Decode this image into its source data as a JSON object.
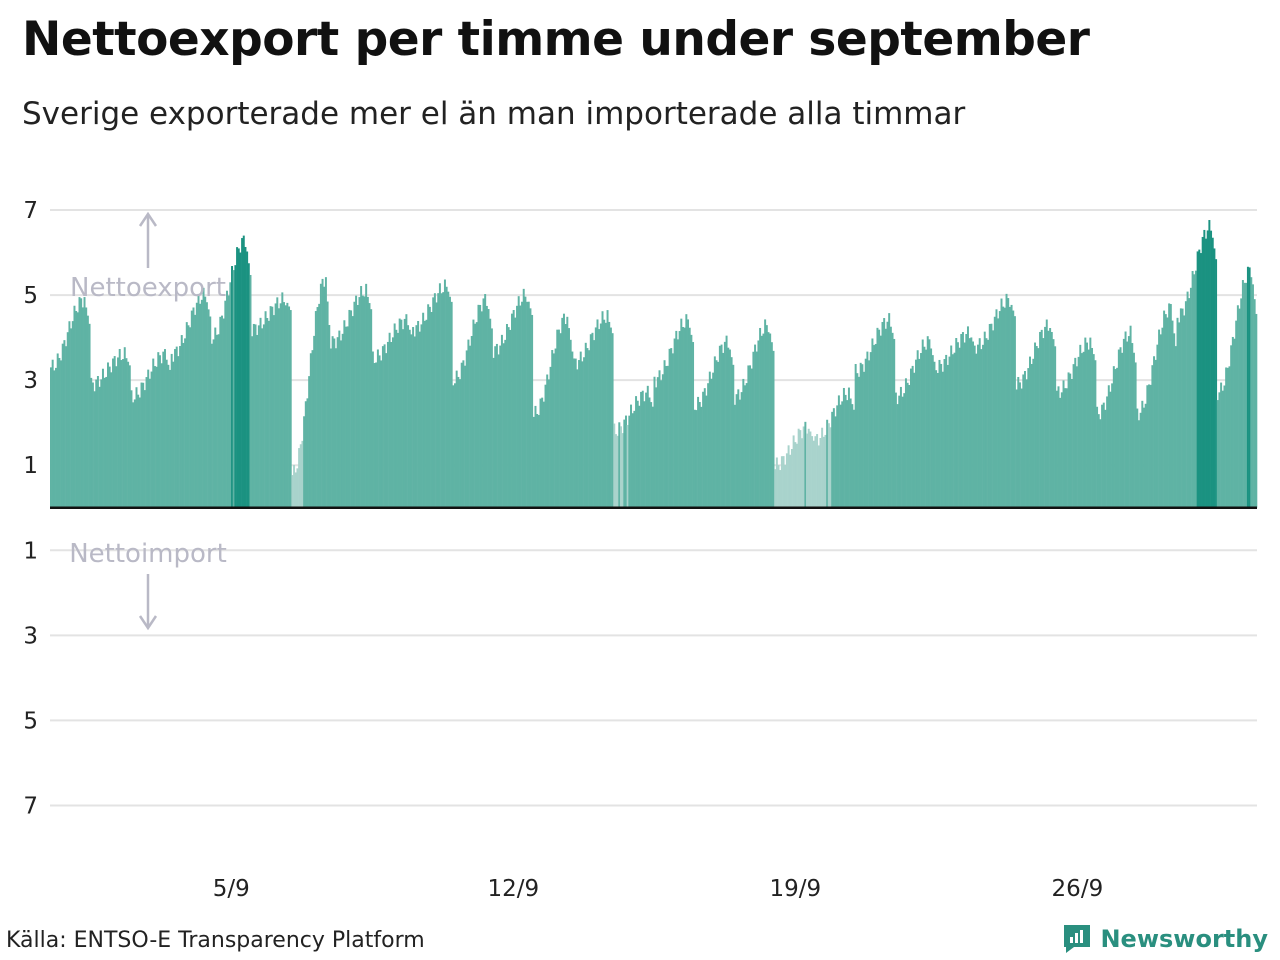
{
  "header": {
    "title": "Nettoexport per timme under september",
    "subtitle": "Sverige exporterade mer el än man importerade alla timmar"
  },
  "footer": {
    "source": "Källa: ENTSO-E Transparency Platform",
    "brand": "Newsworthy"
  },
  "icons": {
    "brand_logo": "newsworthy-logo-icon",
    "arrow_up": "arrow-up-icon",
    "arrow_down": "arrow-down-icon"
  },
  "colors": {
    "bar_normal": "#5fb3a4",
    "bar_high": "#1b9281",
    "bar_low": "#a9d3cc",
    "grid": "#e3e3e3",
    "zero_line": "#111111",
    "annotation": "#b9b9c6",
    "brand": "#2a8f7f"
  },
  "chart_data": {
    "type": "bar",
    "x_axis": {
      "range": [
        "2023-09-01 00:00",
        "2023-09-30 23:00"
      ],
      "tick_labels": [
        {
          "date": "2023-09-05",
          "label": "5/9"
        },
        {
          "date": "2023-09-12",
          "label": "12/9"
        },
        {
          "date": "2023-09-19",
          "label": "19/9"
        },
        {
          "date": "2023-09-26",
          "label": "26/9"
        }
      ]
    },
    "y_axis": {
      "range": [
        -8,
        7
      ],
      "tick_labels": [
        {
          "value": 7,
          "label": "7"
        },
        {
          "value": 5,
          "label": "5"
        },
        {
          "value": 3,
          "label": "3"
        },
        {
          "value": 1,
          "label": "1"
        },
        {
          "value": -1,
          "label": "1"
        },
        {
          "value": -3,
          "label": "3"
        },
        {
          "value": -5,
          "label": "5"
        },
        {
          "value": -7,
          "label": "7"
        }
      ]
    },
    "grid": true,
    "annotations": {
      "export": "Nettoexport",
      "import": "Nettoimport"
    },
    "daily_profile": [
      {
        "date": "2023-09-01",
        "low": 3.3,
        "high": 4.9
      },
      {
        "date": "2023-09-02",
        "low": 2.9,
        "high": 3.6
      },
      {
        "date": "2023-09-03",
        "low": 2.6,
        "high": 3.6
      },
      {
        "date": "2023-09-04",
        "low": 3.6,
        "high": 5.0
      },
      {
        "date": "2023-09-05",
        "low": 4.0,
        "high": 6.3
      },
      {
        "date": "2023-09-06",
        "low": 4.2,
        "high": 4.9
      },
      {
        "date": "2023-09-07",
        "low": 0.8,
        "high": 5.4
      },
      {
        "date": "2023-09-08",
        "low": 3.9,
        "high": 5.1
      },
      {
        "date": "2023-09-09",
        "low": 3.5,
        "high": 4.4
      },
      {
        "date": "2023-09-10",
        "low": 4.2,
        "high": 5.2
      },
      {
        "date": "2023-09-11",
        "low": 3.0,
        "high": 4.9
      },
      {
        "date": "2023-09-12",
        "low": 3.7,
        "high": 5.0
      },
      {
        "date": "2023-09-13",
        "low": 2.2,
        "high": 4.5
      },
      {
        "date": "2023-09-14",
        "low": 3.4,
        "high": 4.5
      },
      {
        "date": "2023-09-15",
        "low": 1.8,
        "high": 2.7
      },
      {
        "date": "2023-09-16",
        "low": 3.0,
        "high": 4.4
      },
      {
        "date": "2023-09-17",
        "low": 2.4,
        "high": 3.9
      },
      {
        "date": "2023-09-18",
        "low": 2.6,
        "high": 4.3
      },
      {
        "date": "2023-09-19",
        "low": 1.0,
        "high": 1.9
      },
      {
        "date": "2023-09-20",
        "low": 1.6,
        "high": 2.7
      },
      {
        "date": "2023-09-21",
        "low": 3.2,
        "high": 4.4
      },
      {
        "date": "2023-09-22",
        "low": 2.6,
        "high": 3.9
      },
      {
        "date": "2023-09-23",
        "low": 3.3,
        "high": 4.1
      },
      {
        "date": "2023-09-24",
        "low": 3.8,
        "high": 4.9
      },
      {
        "date": "2023-09-25",
        "low": 2.9,
        "high": 4.3
      },
      {
        "date": "2023-09-26",
        "low": 2.7,
        "high": 3.9
      },
      {
        "date": "2023-09-27",
        "low": 2.2,
        "high": 4.1
      },
      {
        "date": "2023-09-28",
        "low": 2.2,
        "high": 4.7
      },
      {
        "date": "2023-09-29",
        "low": 4.5,
        "high": 6.6
      },
      {
        "date": "2023-09-30",
        "low": 2.7,
        "high": 5.6
      }
    ]
  }
}
